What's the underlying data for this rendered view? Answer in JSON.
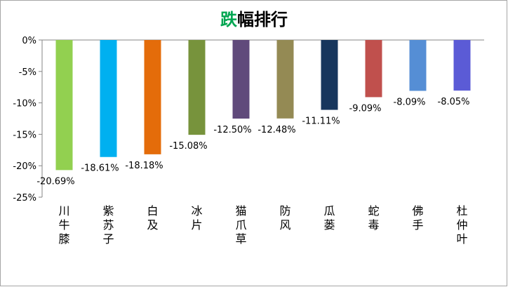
{
  "chart_data": {
    "type": "bar",
    "title": "跌幅排行",
    "title_accent_color": "#00a651",
    "categories": [
      "川牛膝",
      "紫苏子",
      "白及",
      "冰片",
      "猫爪草",
      "防风",
      "瓜蒌",
      "蛇毒",
      "佛手",
      "杜仲叶"
    ],
    "values": [
      -20.69,
      -18.61,
      -18.18,
      -15.08,
      -12.5,
      -12.48,
      -11.11,
      -9.09,
      -8.09,
      -8.05
    ],
    "value_labels": [
      "-20.69%",
      "-18.61%",
      "-18.18%",
      "-15.08%",
      "-12.50%",
      "-12.48%",
      "-11.11%",
      "-9.09%",
      "-8.09%",
      "-8.05%"
    ],
    "colors": [
      "#92d050",
      "#00b0f0",
      "#e46c0a",
      "#77933c",
      "#604a7b",
      "#948a54",
      "#17365d",
      "#c0504d",
      "#558ed5",
      "#5b5bd6"
    ],
    "ylim": [
      -25,
      0
    ],
    "yticks": [
      {
        "value": 0,
        "label": "0%"
      },
      {
        "value": -5,
        "label": "-5%"
      },
      {
        "value": -10,
        "label": "-10%"
      },
      {
        "value": -15,
        "label": "-15%"
      },
      {
        "value": -20,
        "label": "-20%"
      },
      {
        "value": -25,
        "label": "-25%"
      }
    ],
    "grid": false
  }
}
